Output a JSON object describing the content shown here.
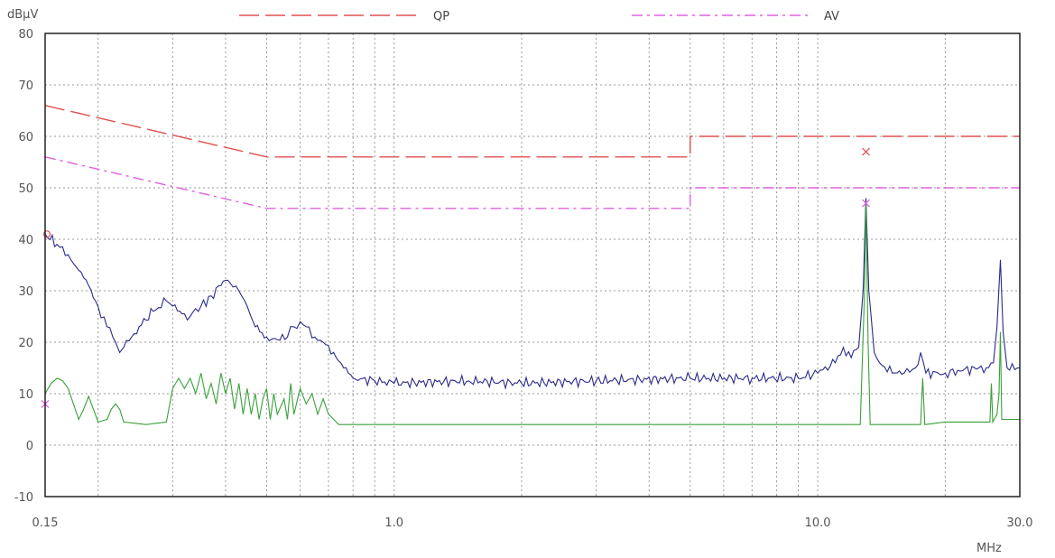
{
  "chart_data": {
    "type": "line",
    "y_unit_label": "dBµV",
    "x_unit_label": "MHz",
    "xscale": "log",
    "xlim": [
      0.15,
      30.0
    ],
    "ylim": [
      -10,
      80
    ],
    "y_ticks": [
      80,
      70,
      60,
      50,
      40,
      30,
      20,
      10,
      0,
      -10
    ],
    "x_tick_labels": [
      {
        "value": 0.15,
        "label": "0.15"
      },
      {
        "value": 1.0,
        "label": "1.0"
      },
      {
        "value": 10.0,
        "label": "10.0"
      },
      {
        "value": 30.0,
        "label": "30.0"
      }
    ],
    "grid": true,
    "legend_position": "top",
    "legend": [
      {
        "name": "QP",
        "color": "#e05050",
        "style": "dashed"
      },
      {
        "name": "AV",
        "color": "#e060e0",
        "style": "dash-dot"
      }
    ],
    "limit_lines": [
      {
        "name": "QP",
        "color": "#e05050",
        "style": "dashed",
        "points": [
          [
            0.15,
            66
          ],
          [
            0.5,
            56
          ],
          [
            5.0,
            56
          ],
          [
            5.0,
            60
          ],
          [
            30.0,
            60
          ]
        ]
      },
      {
        "name": "AV",
        "color": "#e060e0",
        "style": "dash-dot",
        "points": [
          [
            0.15,
            56
          ],
          [
            0.5,
            46
          ],
          [
            5.0,
            46
          ],
          [
            5.0,
            50
          ],
          [
            30.0,
            50
          ]
        ]
      }
    ],
    "series": [
      {
        "color": "#2a2a8a",
        "points": [
          [
            0.15,
            41
          ],
          [
            0.16,
            39
          ],
          [
            0.17,
            37
          ],
          [
            0.18,
            34
          ],
          [
            0.19,
            31
          ],
          [
            0.2,
            27
          ],
          [
            0.21,
            23
          ],
          [
            0.22,
            20
          ],
          [
            0.225,
            18
          ],
          [
            0.23,
            19
          ],
          [
            0.24,
            21
          ],
          [
            0.25,
            23
          ],
          [
            0.27,
            26
          ],
          [
            0.29,
            28
          ],
          [
            0.3,
            27
          ],
          [
            0.32,
            25.5
          ],
          [
            0.33,
            25
          ],
          [
            0.35,
            27
          ],
          [
            0.37,
            29
          ],
          [
            0.39,
            31
          ],
          [
            0.4,
            32
          ],
          [
            0.41,
            31.5
          ],
          [
            0.43,
            30
          ],
          [
            0.45,
            27
          ],
          [
            0.47,
            23
          ],
          [
            0.5,
            21
          ],
          [
            0.53,
            20.5
          ],
          [
            0.56,
            21
          ],
          [
            0.58,
            23
          ],
          [
            0.6,
            24
          ],
          [
            0.62,
            23
          ],
          [
            0.65,
            21
          ],
          [
            0.68,
            20
          ],
          [
            0.72,
            18
          ],
          [
            0.76,
            15
          ],
          [
            0.8,
            13
          ],
          [
            0.9,
            12.5
          ],
          [
            1.0,
            12
          ],
          [
            1.5,
            12.5
          ],
          [
            2.0,
            12
          ],
          [
            3.0,
            12.5
          ],
          [
            5.0,
            13
          ],
          [
            7.0,
            13
          ],
          [
            9.0,
            13
          ],
          [
            10.0,
            14
          ],
          [
            11.0,
            16
          ],
          [
            11.5,
            19
          ],
          [
            12.0,
            17
          ],
          [
            12.5,
            19
          ],
          [
            12.8,
            30
          ],
          [
            13.0,
            48
          ],
          [
            13.2,
            30
          ],
          [
            13.6,
            18
          ],
          [
            14.0,
            16
          ],
          [
            15.0,
            14
          ],
          [
            16.0,
            14
          ],
          [
            17.0,
            15
          ],
          [
            17.5,
            18
          ],
          [
            18.0,
            14
          ],
          [
            20.0,
            14
          ],
          [
            22.0,
            14.5
          ],
          [
            24.0,
            15
          ],
          [
            25.0,
            15
          ],
          [
            26.0,
            16
          ],
          [
            26.5,
            23
          ],
          [
            27.0,
            36
          ],
          [
            27.4,
            22
          ],
          [
            28.0,
            15
          ],
          [
            30.0,
            15
          ]
        ]
      },
      {
        "color": "#3aa03a",
        "points": [
          [
            0.15,
            10
          ],
          [
            0.155,
            12
          ],
          [
            0.16,
            13
          ],
          [
            0.165,
            12.5
          ],
          [
            0.17,
            11
          ],
          [
            0.175,
            8
          ],
          [
            0.18,
            5
          ],
          [
            0.185,
            7
          ],
          [
            0.19,
            9.5
          ],
          [
            0.195,
            7
          ],
          [
            0.2,
            4.5
          ],
          [
            0.21,
            5
          ],
          [
            0.215,
            7
          ],
          [
            0.22,
            8
          ],
          [
            0.225,
            7
          ],
          [
            0.23,
            4.5
          ],
          [
            0.26,
            4
          ],
          [
            0.29,
            4.5
          ],
          [
            0.3,
            11
          ],
          [
            0.31,
            13
          ],
          [
            0.32,
            11
          ],
          [
            0.33,
            13
          ],
          [
            0.34,
            10
          ],
          [
            0.35,
            14
          ],
          [
            0.36,
            9
          ],
          [
            0.37,
            12
          ],
          [
            0.38,
            8
          ],
          [
            0.39,
            14
          ],
          [
            0.4,
            10
          ],
          [
            0.41,
            13
          ],
          [
            0.42,
            7
          ],
          [
            0.43,
            12
          ],
          [
            0.44,
            6
          ],
          [
            0.45,
            11
          ],
          [
            0.46,
            6
          ],
          [
            0.47,
            10
          ],
          [
            0.48,
            5
          ],
          [
            0.49,
            9
          ],
          [
            0.5,
            11
          ],
          [
            0.51,
            5
          ],
          [
            0.52,
            10
          ],
          [
            0.53,
            6
          ],
          [
            0.55,
            9
          ],
          [
            0.56,
            5
          ],
          [
            0.57,
            12
          ],
          [
            0.58,
            6
          ],
          [
            0.6,
            11
          ],
          [
            0.62,
            8
          ],
          [
            0.64,
            10
          ],
          [
            0.66,
            6
          ],
          [
            0.68,
            9
          ],
          [
            0.7,
            6
          ],
          [
            0.72,
            5
          ],
          [
            0.74,
            4
          ],
          [
            1.0,
            4
          ],
          [
            2.0,
            4
          ],
          [
            5.0,
            4
          ],
          [
            10.0,
            4
          ],
          [
            12.6,
            4
          ],
          [
            12.9,
            30
          ],
          [
            13.0,
            47
          ],
          [
            13.15,
            20
          ],
          [
            13.3,
            4
          ],
          [
            17.5,
            4
          ],
          [
            17.7,
            13
          ],
          [
            17.9,
            4
          ],
          [
            20.0,
            4.5
          ],
          [
            25.5,
            4.5
          ],
          [
            25.7,
            12
          ],
          [
            25.9,
            4.5
          ],
          [
            26.5,
            6
          ],
          [
            26.8,
            10
          ],
          [
            27.0,
            22
          ],
          [
            27.2,
            5
          ],
          [
            28.0,
            5
          ],
          [
            30.0,
            5
          ]
        ]
      }
    ],
    "markers": [
      {
        "x": 0.15,
        "y": 41,
        "symbol": "o",
        "color": "#e05050"
      },
      {
        "x": 0.15,
        "y": 8,
        "symbol": "x",
        "color": "#e060e0"
      },
      {
        "x": 13.0,
        "y": 57,
        "symbol": "x",
        "color": "#e05050"
      },
      {
        "x": 13.0,
        "y": 47,
        "symbol": "x",
        "color": "#e060e0"
      }
    ]
  }
}
